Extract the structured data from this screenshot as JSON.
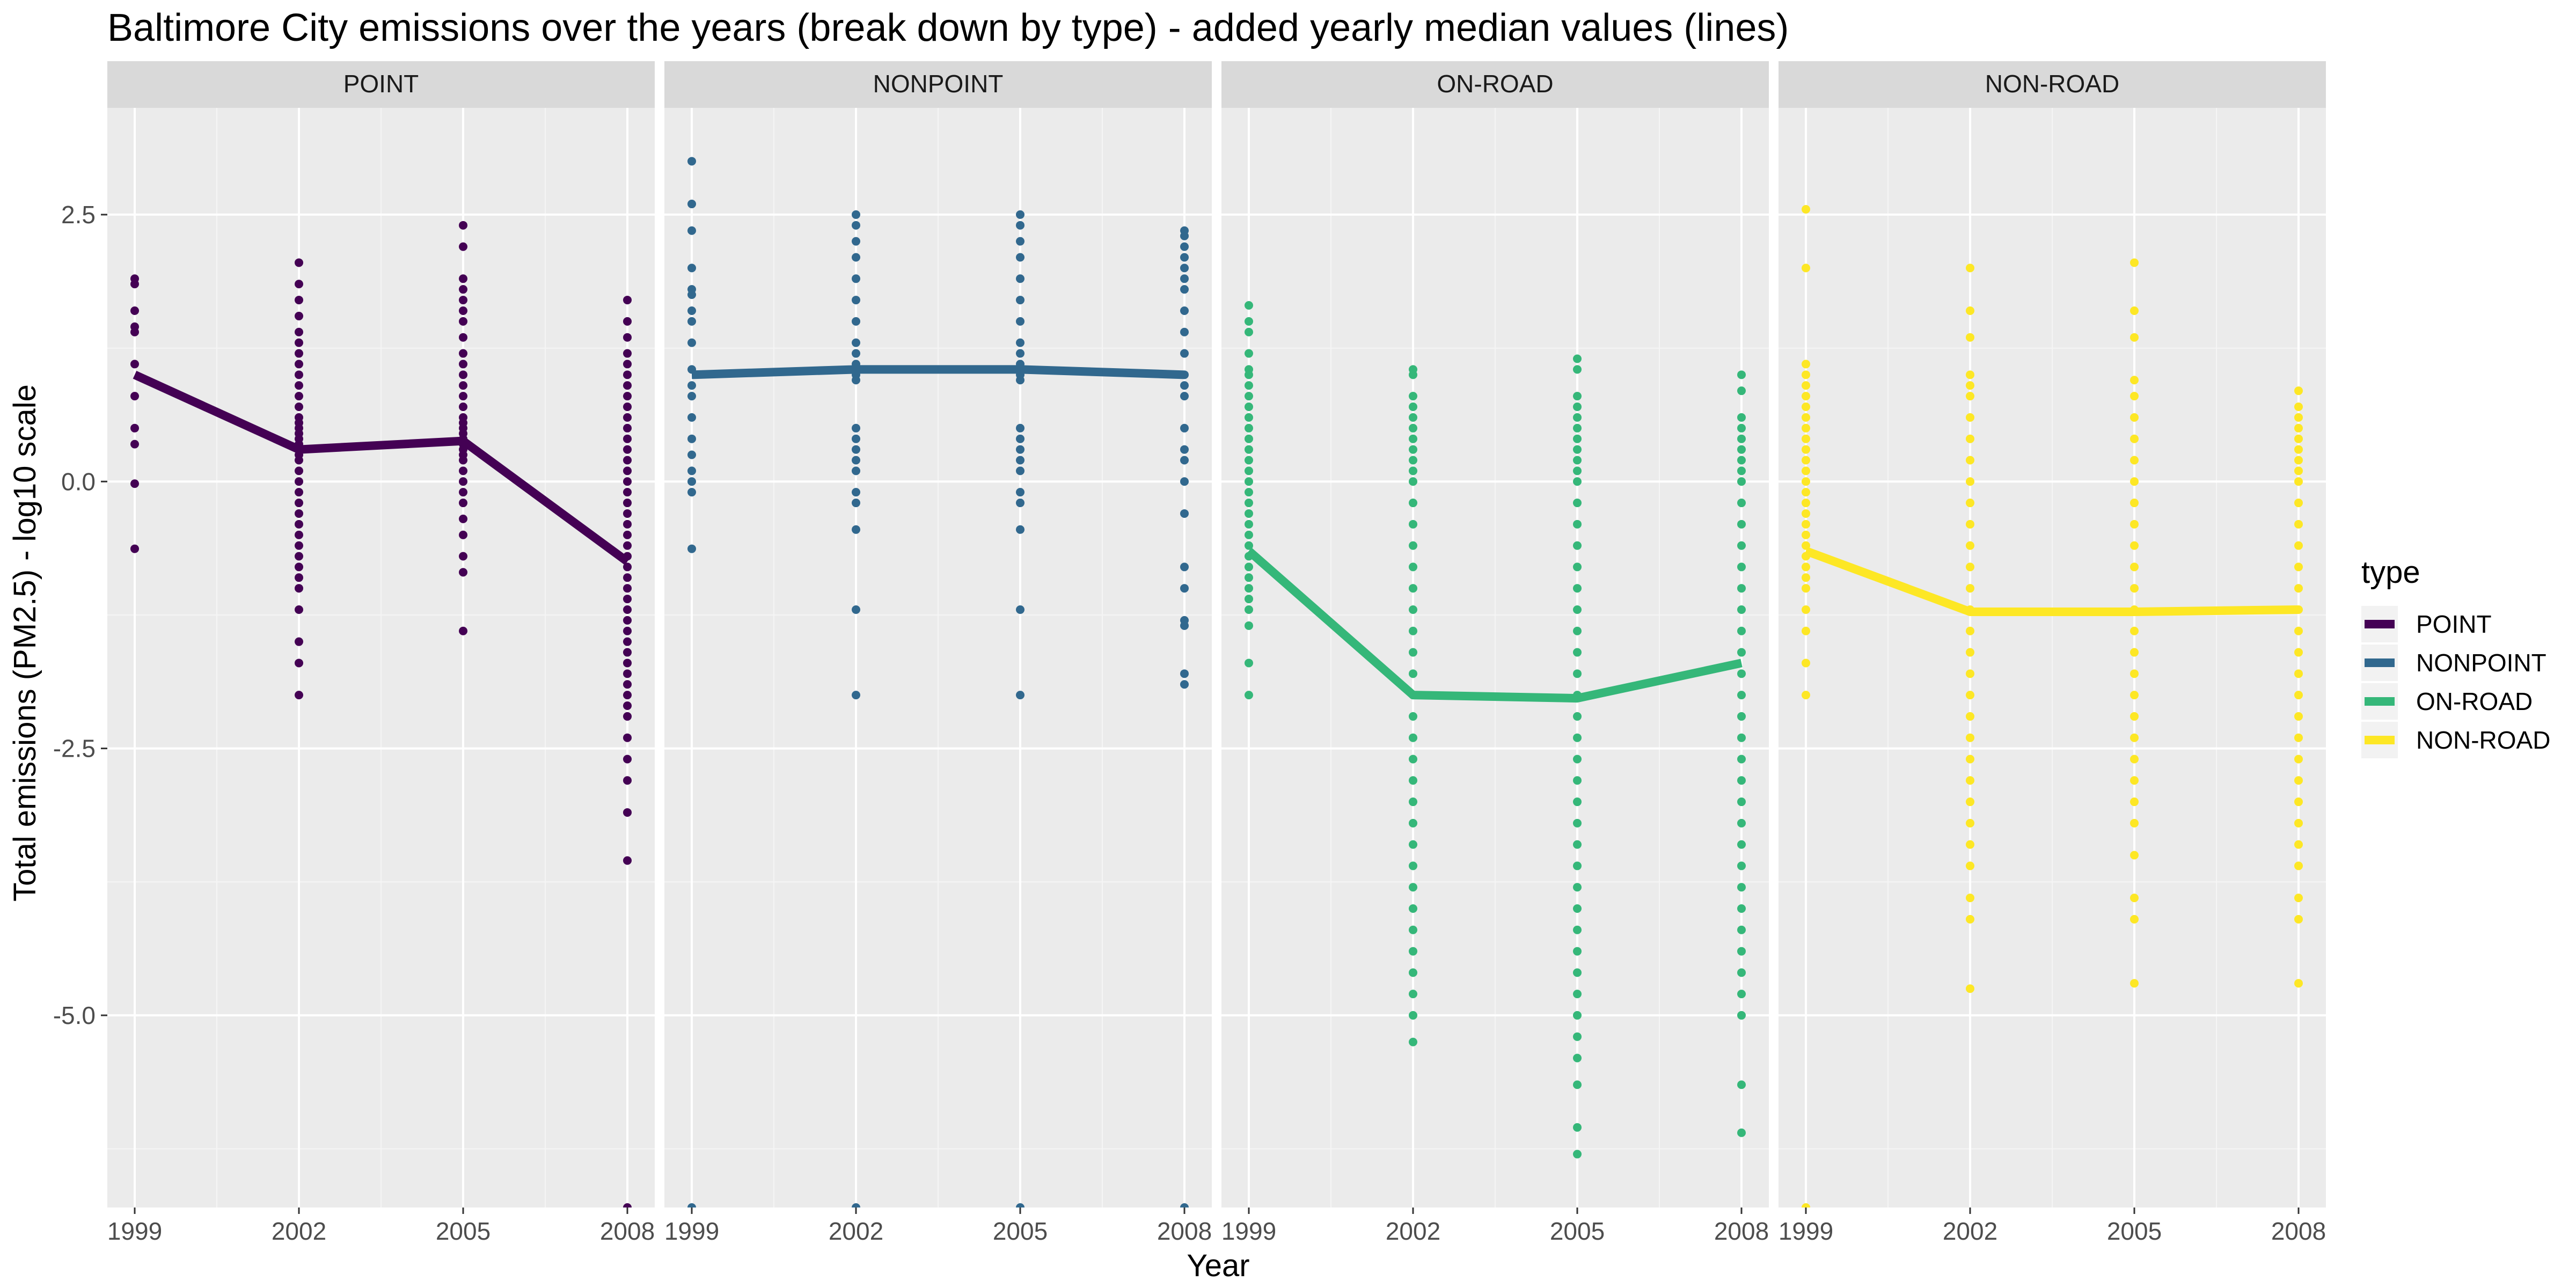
{
  "chart_data": {
    "type": "scatter",
    "title": "Baltimore City emissions over the years (break down by type) - added yearly median values (lines)",
    "xlabel": "Year",
    "ylabel": "Total emissions (PM2.5) - log10 scale",
    "x_ticks": [
      "1999",
      "2002",
      "2005",
      "2008"
    ],
    "y_ticks": [
      "2.5",
      "0.0",
      "-2.5",
      "-5.0"
    ],
    "xlim": [
      1998.5,
      2008.5
    ],
    "ylim": [
      -6.8,
      3.5
    ],
    "grid": true,
    "legend": {
      "title": "type",
      "placement": "right"
    },
    "panels": [
      {
        "name": "POINT",
        "color": "#440154",
        "median": [
          [
            1999,
            1.0
          ],
          [
            2002,
            0.3
          ],
          [
            2005,
            0.38
          ],
          [
            2008,
            -0.75
          ]
        ],
        "points": {
          "1999": [
            1.9,
            1.85,
            1.6,
            1.45,
            1.4,
            1.1,
            0.8,
            0.5,
            0.35,
            -0.02,
            -0.63
          ],
          "2002": [
            2.05,
            1.85,
            1.7,
            1.55,
            1.4,
            1.3,
            1.2,
            1.1,
            1.0,
            0.9,
            0.8,
            0.7,
            0.6,
            0.55,
            0.5,
            0.45,
            0.4,
            0.35,
            0.3,
            0.25,
            0.2,
            0.1,
            0.0,
            -0.1,
            -0.2,
            -0.3,
            -0.4,
            -0.5,
            -0.6,
            -0.7,
            -0.8,
            -0.9,
            -1.0,
            -1.2,
            -1.5,
            -1.7,
            -2.0
          ],
          "2005": [
            2.4,
            2.2,
            1.9,
            1.8,
            1.7,
            1.6,
            1.5,
            1.35,
            1.2,
            1.1,
            1.0,
            0.9,
            0.8,
            0.7,
            0.6,
            0.55,
            0.5,
            0.45,
            0.4,
            0.35,
            0.3,
            0.25,
            0.2,
            0.1,
            0.0,
            -0.1,
            -0.2,
            -0.35,
            -0.5,
            -0.7,
            -0.85,
            -1.4
          ],
          "2008": [
            1.7,
            1.5,
            1.35,
            1.2,
            1.1,
            1.0,
            0.9,
            0.8,
            0.7,
            0.6,
            0.5,
            0.4,
            0.3,
            0.2,
            0.1,
            0.0,
            -0.1,
            -0.2,
            -0.3,
            -0.4,
            -0.5,
            -0.6,
            -0.7,
            -0.8,
            -0.9,
            -1.0,
            -1.1,
            -1.2,
            -1.3,
            -1.4,
            -1.5,
            -1.6,
            -1.7,
            -1.8,
            -1.9,
            -2.0,
            -2.1,
            -2.2,
            -2.4,
            -2.6,
            -2.8,
            -3.1,
            -3.55,
            -6.8
          ]
        }
      },
      {
        "name": "NONPOINT",
        "color": "#31688E",
        "median": [
          [
            1999,
            1.0
          ],
          [
            2002,
            1.05
          ],
          [
            2005,
            1.05
          ],
          [
            2008,
            1.0
          ]
        ],
        "points": {
          "1999": [
            3.0,
            2.6,
            2.35,
            2.0,
            1.8,
            1.75,
            1.6,
            1.5,
            1.3,
            1.05,
            0.9,
            0.8,
            0.6,
            0.4,
            0.25,
            0.1,
            0.0,
            -0.1,
            -0.63,
            -6.8
          ],
          "2002": [
            2.5,
            2.4,
            2.25,
            2.1,
            1.9,
            1.7,
            1.5,
            1.3,
            1.2,
            1.1,
            1.0,
            0.95,
            0.5,
            0.4,
            0.3,
            0.2,
            0.1,
            -0.1,
            -0.2,
            -0.45,
            -1.2,
            -2.0,
            -6.8
          ],
          "2005": [
            2.5,
            2.4,
            2.25,
            2.1,
            1.9,
            1.7,
            1.5,
            1.3,
            1.2,
            1.1,
            1.0,
            0.95,
            0.5,
            0.4,
            0.3,
            0.2,
            0.1,
            -0.1,
            -0.2,
            -0.45,
            -1.2,
            -2.0,
            -6.8
          ],
          "2008": [
            2.35,
            2.3,
            2.2,
            2.1,
            2.0,
            1.9,
            1.8,
            1.6,
            1.4,
            1.2,
            1.0,
            0.9,
            0.8,
            0.5,
            0.3,
            0.2,
            0.0,
            -0.3,
            -0.8,
            -1.0,
            -1.3,
            -1.35,
            -1.8,
            -1.9,
            -6.8
          ]
        }
      },
      {
        "name": "ON-ROAD",
        "color": "#35B779",
        "median": [
          [
            1999,
            -0.65
          ],
          [
            2002,
            -2.0
          ],
          [
            2005,
            -2.03
          ],
          [
            2008,
            -1.7
          ]
        ],
        "points": {
          "1999": [
            1.65,
            1.5,
            1.4,
            1.2,
            1.05,
            1.0,
            0.9,
            0.8,
            0.7,
            0.6,
            0.5,
            0.4,
            0.3,
            0.2,
            0.1,
            0.0,
            -0.1,
            -0.2,
            -0.3,
            -0.4,
            -0.5,
            -0.6,
            -0.7,
            -0.8,
            -0.9,
            -1.0,
            -1.1,
            -1.2,
            -1.35,
            -1.7,
            -2.0
          ],
          "2002": [
            1.05,
            1.0,
            0.8,
            0.7,
            0.6,
            0.5,
            0.4,
            0.3,
            0.2,
            0.1,
            0.0,
            -0.2,
            -0.4,
            -0.6,
            -0.8,
            -1.0,
            -1.2,
            -1.4,
            -1.6,
            -1.8,
            -2.0,
            -2.2,
            -2.4,
            -2.6,
            -2.8,
            -3.0,
            -3.2,
            -3.4,
            -3.6,
            -3.8,
            -4.0,
            -4.2,
            -4.4,
            -4.6,
            -4.8,
            -5.0,
            -5.25
          ],
          "2005": [
            1.15,
            1.05,
            0.8,
            0.7,
            0.6,
            0.5,
            0.4,
            0.3,
            0.2,
            0.1,
            0.0,
            -0.2,
            -0.4,
            -0.6,
            -0.8,
            -1.0,
            -1.2,
            -1.4,
            -1.6,
            -1.8,
            -2.0,
            -2.2,
            -2.4,
            -2.6,
            -2.8,
            -3.0,
            -3.2,
            -3.4,
            -3.6,
            -3.8,
            -4.0,
            -4.2,
            -4.4,
            -4.6,
            -4.8,
            -5.0,
            -5.2,
            -5.4,
            -5.65,
            -6.05,
            -6.3
          ],
          "2008": [
            1.0,
            0.85,
            0.6,
            0.5,
            0.4,
            0.3,
            0.2,
            0.1,
            0.0,
            -0.2,
            -0.4,
            -0.6,
            -0.8,
            -1.0,
            -1.2,
            -1.4,
            -1.6,
            -1.8,
            -2.0,
            -2.2,
            -2.4,
            -2.6,
            -2.8,
            -3.0,
            -3.2,
            -3.4,
            -3.6,
            -3.8,
            -4.0,
            -4.2,
            -4.4,
            -4.6,
            -4.8,
            -5.0,
            -5.65,
            -6.1
          ]
        }
      },
      {
        "name": "NON-ROAD",
        "color": "#FDE725",
        "median": [
          [
            1999,
            -0.65
          ],
          [
            2002,
            -1.22
          ],
          [
            2005,
            -1.22
          ],
          [
            2008,
            -1.2
          ]
        ],
        "points": {
          "1999": [
            2.55,
            2.0,
            1.1,
            1.0,
            0.9,
            0.8,
            0.7,
            0.6,
            0.5,
            0.4,
            0.3,
            0.2,
            0.1,
            0.0,
            -0.1,
            -0.2,
            -0.3,
            -0.4,
            -0.5,
            -0.6,
            -0.7,
            -0.8,
            -0.9,
            -1.0,
            -1.2,
            -1.4,
            -1.7,
            -2.0,
            -6.8
          ],
          "2002": [
            2.0,
            1.6,
            1.35,
            1.0,
            0.9,
            0.8,
            0.6,
            0.4,
            0.2,
            0.0,
            -0.2,
            -0.4,
            -0.6,
            -0.8,
            -1.0,
            -1.2,
            -1.4,
            -1.6,
            -1.8,
            -2.0,
            -2.2,
            -2.4,
            -2.6,
            -2.8,
            -3.0,
            -3.2,
            -3.4,
            -3.6,
            -3.9,
            -4.1,
            -4.75
          ],
          "2005": [
            2.05,
            1.6,
            1.35,
            0.95,
            0.8,
            0.6,
            0.4,
            0.2,
            0.0,
            -0.2,
            -0.4,
            -0.6,
            -0.8,
            -1.0,
            -1.2,
            -1.4,
            -1.6,
            -1.8,
            -2.0,
            -2.2,
            -2.4,
            -2.6,
            -2.8,
            -3.0,
            -3.2,
            -3.5,
            -3.9,
            -4.1,
            -4.7
          ],
          "2008": [
            0.85,
            0.7,
            0.6,
            0.5,
            0.4,
            0.3,
            0.2,
            0.1,
            0.0,
            -0.2,
            -0.4,
            -0.6,
            -0.8,
            -1.0,
            -1.2,
            -1.4,
            -1.6,
            -1.8,
            -2.0,
            -2.2,
            -2.4,
            -2.6,
            -2.8,
            -3.0,
            -3.2,
            -3.4,
            -3.6,
            -3.9,
            -4.1,
            -4.7
          ]
        }
      }
    ]
  }
}
